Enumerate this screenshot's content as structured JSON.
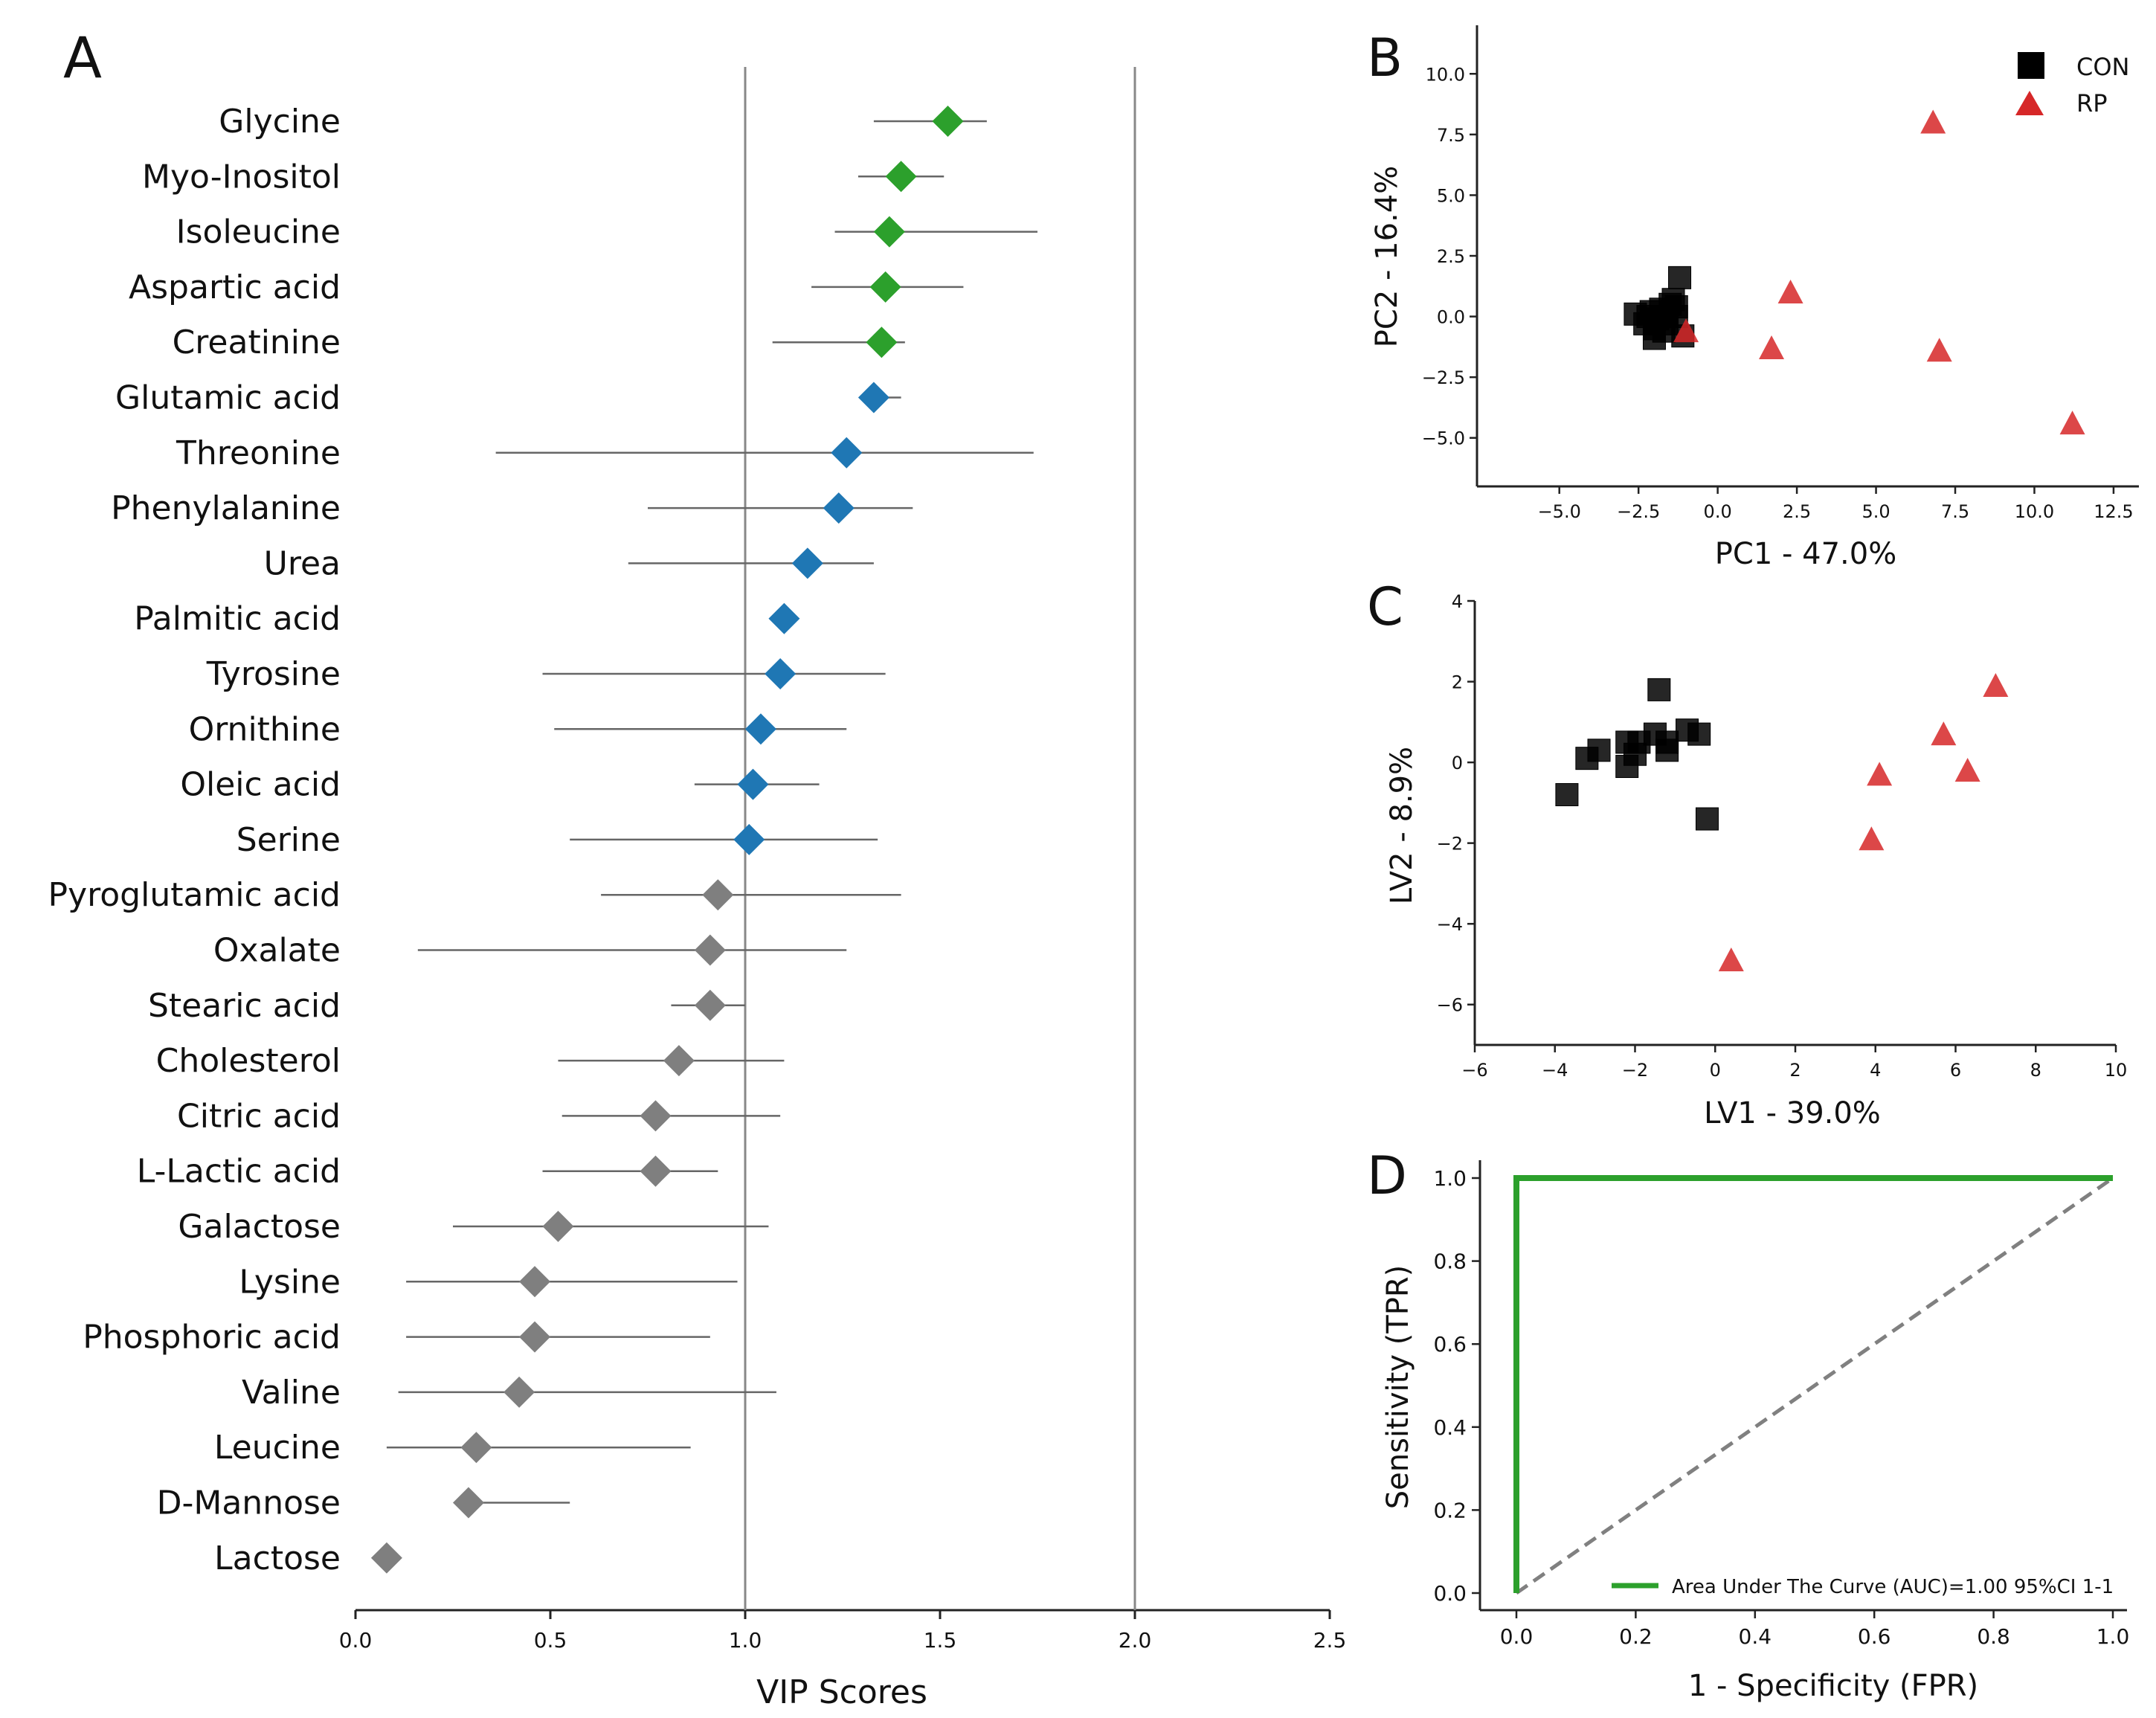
{
  "chart_data": [
    {
      "panel": "A",
      "type": "scatter",
      "subtype": "dot-plot-with-error-bars",
      "title": "",
      "xlabel": "VIP Scores",
      "ylabel": "",
      "xlim": [
        0.0,
        2.5
      ],
      "xticks": [
        "0.0",
        "0.5",
        "1.0",
        "1.5",
        "2.0",
        "2.5"
      ],
      "reference_lines_x": [
        1.0,
        2.0
      ],
      "group_colors": {
        "green": "#2ca02c",
        "blue": "#1f77b4",
        "gray": "#7f7f7f"
      },
      "items": [
        {
          "name": "Glycine",
          "vip": 1.52,
          "lo": 1.33,
          "hi": 1.62,
          "group": "green"
        },
        {
          "name": "Myo-Inositol",
          "vip": 1.4,
          "lo": 1.29,
          "hi": 1.51,
          "group": "green"
        },
        {
          "name": "Isoleucine",
          "vip": 1.37,
          "lo": 1.23,
          "hi": 1.75,
          "group": "green"
        },
        {
          "name": "Aspartic acid",
          "vip": 1.36,
          "lo": 1.17,
          "hi": 1.56,
          "group": "green"
        },
        {
          "name": "Creatinine",
          "vip": 1.35,
          "lo": 1.07,
          "hi": 1.41,
          "group": "green"
        },
        {
          "name": "Glutamic acid",
          "vip": 1.33,
          "lo": 1.3,
          "hi": 1.4,
          "group": "blue"
        },
        {
          "name": "Threonine",
          "vip": 1.26,
          "lo": 0.36,
          "hi": 1.74,
          "group": "blue"
        },
        {
          "name": "Phenylalanine",
          "vip": 1.24,
          "lo": 0.75,
          "hi": 1.43,
          "group": "blue"
        },
        {
          "name": "Urea",
          "vip": 1.16,
          "lo": 0.7,
          "hi": 1.33,
          "group": "blue"
        },
        {
          "name": "Palmitic acid",
          "vip": 1.1,
          "lo": 1.07,
          "hi": 1.13,
          "group": "blue"
        },
        {
          "name": "Tyrosine",
          "vip": 1.09,
          "lo": 0.48,
          "hi": 1.36,
          "group": "blue"
        },
        {
          "name": "Ornithine",
          "vip": 1.04,
          "lo": 0.51,
          "hi": 1.26,
          "group": "blue"
        },
        {
          "name": "Oleic acid",
          "vip": 1.02,
          "lo": 0.87,
          "hi": 1.19,
          "group": "blue"
        },
        {
          "name": "Serine",
          "vip": 1.01,
          "lo": 0.55,
          "hi": 1.34,
          "group": "blue"
        },
        {
          "name": "Pyroglutamic acid",
          "vip": 0.93,
          "lo": 0.63,
          "hi": 1.4,
          "group": "gray"
        },
        {
          "name": "Oxalate",
          "vip": 0.91,
          "lo": 0.16,
          "hi": 1.26,
          "group": "gray"
        },
        {
          "name": "Stearic acid",
          "vip": 0.91,
          "lo": 0.81,
          "hi": 1.0,
          "group": "gray"
        },
        {
          "name": "Cholesterol",
          "vip": 0.83,
          "lo": 0.52,
          "hi": 1.1,
          "group": "gray"
        },
        {
          "name": "Citric acid",
          "vip": 0.77,
          "lo": 0.53,
          "hi": 1.09,
          "group": "gray"
        },
        {
          "name": "L-Lactic acid",
          "vip": 0.77,
          "lo": 0.48,
          "hi": 0.93,
          "group": "gray"
        },
        {
          "name": "Galactose",
          "vip": 0.52,
          "lo": 0.25,
          "hi": 1.06,
          "group": "gray"
        },
        {
          "name": "Lysine",
          "vip": 0.46,
          "lo": 0.13,
          "hi": 0.98,
          "group": "gray"
        },
        {
          "name": "Phosphoric acid",
          "vip": 0.46,
          "lo": 0.13,
          "hi": 0.91,
          "group": "gray"
        },
        {
          "name": "Valine",
          "vip": 0.42,
          "lo": 0.11,
          "hi": 1.08,
          "group": "gray"
        },
        {
          "name": "Leucine",
          "vip": 0.31,
          "lo": 0.08,
          "hi": 0.86,
          "group": "gray"
        },
        {
          "name": "D-Mannose",
          "vip": 0.29,
          "lo": 0.29,
          "hi": 0.55,
          "group": "gray"
        },
        {
          "name": "Lactose",
          "vip": 0.08,
          "lo": 0.08,
          "hi": 0.08,
          "group": "gray"
        }
      ]
    },
    {
      "panel": "B",
      "type": "scatter",
      "title": "",
      "xlabel": "PC1 - 47.0%",
      "ylabel": "PC2 - 16.4%",
      "xlim": [
        -7.6,
        13.3
      ],
      "ylim": [
        -7.0,
        12.0
      ],
      "xticks": [
        -5.0,
        -2.5,
        0.0,
        2.5,
        5.0,
        7.5,
        10.0,
        12.5
      ],
      "yticks": [
        -5.0,
        -2.5,
        0.0,
        2.5,
        5.0,
        7.5,
        10.0
      ],
      "legend_position": "top-right",
      "series": [
        {
          "name": "CON",
          "marker": "square",
          "color": "#000000",
          "points": [
            [
              -1.2,
              1.6
            ],
            [
              -2.6,
              0.1
            ],
            [
              -2.3,
              -0.3
            ],
            [
              -2.1,
              0.2
            ],
            [
              -2.0,
              -0.5
            ],
            [
              -1.9,
              -0.1
            ],
            [
              -1.8,
              0.3
            ],
            [
              -1.7,
              -0.6
            ],
            [
              -1.6,
              0.0
            ],
            [
              -1.5,
              0.5
            ],
            [
              -1.4,
              0.7
            ],
            [
              -1.3,
              0.4
            ],
            [
              -1.6,
              -0.3
            ],
            [
              -2.0,
              -0.9
            ],
            [
              -1.1,
              -0.8
            ],
            [
              -2.2,
              0.0
            ],
            [
              -1.3,
              0.0
            ]
          ]
        },
        {
          "name": "RP",
          "marker": "triangle",
          "color": "#d62728",
          "points": [
            [
              6.8,
              8.0
            ],
            [
              2.3,
              1.0
            ],
            [
              -1.0,
              -0.6
            ],
            [
              1.7,
              -1.3
            ],
            [
              7.0,
              -1.4
            ],
            [
              11.2,
              -4.4
            ]
          ]
        }
      ],
      "legend_labels": [
        "CON",
        "RP"
      ]
    },
    {
      "panel": "C",
      "type": "scatter",
      "title": "",
      "xlabel": "LV1 - 39.0%",
      "ylabel": "LV2 - 8.9%",
      "xlim": [
        -6,
        10
      ],
      "ylim": [
        -7.0,
        4.0
      ],
      "xticks": [
        -6,
        -4,
        -2,
        0,
        2,
        4,
        6,
        8,
        10
      ],
      "yticks": [
        -6,
        -4,
        -2,
        0,
        2,
        4
      ],
      "series": [
        {
          "name": "CON",
          "marker": "square",
          "color": "#000000",
          "points": [
            [
              -3.7,
              -0.8
            ],
            [
              -3.2,
              0.1
            ],
            [
              -2.9,
              0.3
            ],
            [
              -2.2,
              -0.1
            ],
            [
              -2.2,
              0.5
            ],
            [
              -2.0,
              0.2
            ],
            [
              -1.9,
              0.5
            ],
            [
              -1.5,
              0.7
            ],
            [
              -1.4,
              1.8
            ],
            [
              -1.2,
              0.3
            ],
            [
              -1.2,
              0.5
            ],
            [
              -0.7,
              0.8
            ],
            [
              -0.4,
              0.7
            ],
            [
              -0.2,
              -1.4
            ]
          ]
        },
        {
          "name": "RP",
          "marker": "triangle",
          "color": "#d62728",
          "points": [
            [
              7.0,
              1.9
            ],
            [
              5.7,
              0.7
            ],
            [
              6.3,
              -0.2
            ],
            [
              4.1,
              -0.3
            ],
            [
              3.9,
              -1.9
            ],
            [
              0.4,
              -4.9
            ]
          ]
        }
      ]
    },
    {
      "panel": "D",
      "type": "line",
      "title": "",
      "xlabel": "1 - Specificity (FPR)",
      "ylabel": "Sensitivity (TPR)",
      "xlim": [
        0.0,
        1.0
      ],
      "ylim": [
        0.0,
        1.0
      ],
      "xticks": [
        "0.0",
        "0.2",
        "0.4",
        "0.6",
        "0.8",
        "1.0"
      ],
      "yticks": [
        "0.0",
        "0.2",
        "0.4",
        "0.6",
        "0.8",
        "1.0"
      ],
      "legend_position": "bottom-right",
      "series": [
        {
          "name": "Area Under The Curve (AUC)=1.00 95%CI 1-1",
          "color": "#2ca02c",
          "style": "solid",
          "x": [
            0.0,
            0.0,
            1.0
          ],
          "y": [
            0.0,
            1.0,
            1.0
          ]
        },
        {
          "name": "chance",
          "color": "#808080",
          "style": "dashed",
          "x": [
            0.0,
            1.0
          ],
          "y": [
            0.0,
            1.0
          ]
        }
      ]
    }
  ],
  "panel_labels": [
    "A",
    "B",
    "C",
    "D"
  ],
  "legend": {
    "con": "CON",
    "rp": "RP",
    "roc": "Area Under The Curve (AUC)=1.00 95%CI 1-1"
  }
}
